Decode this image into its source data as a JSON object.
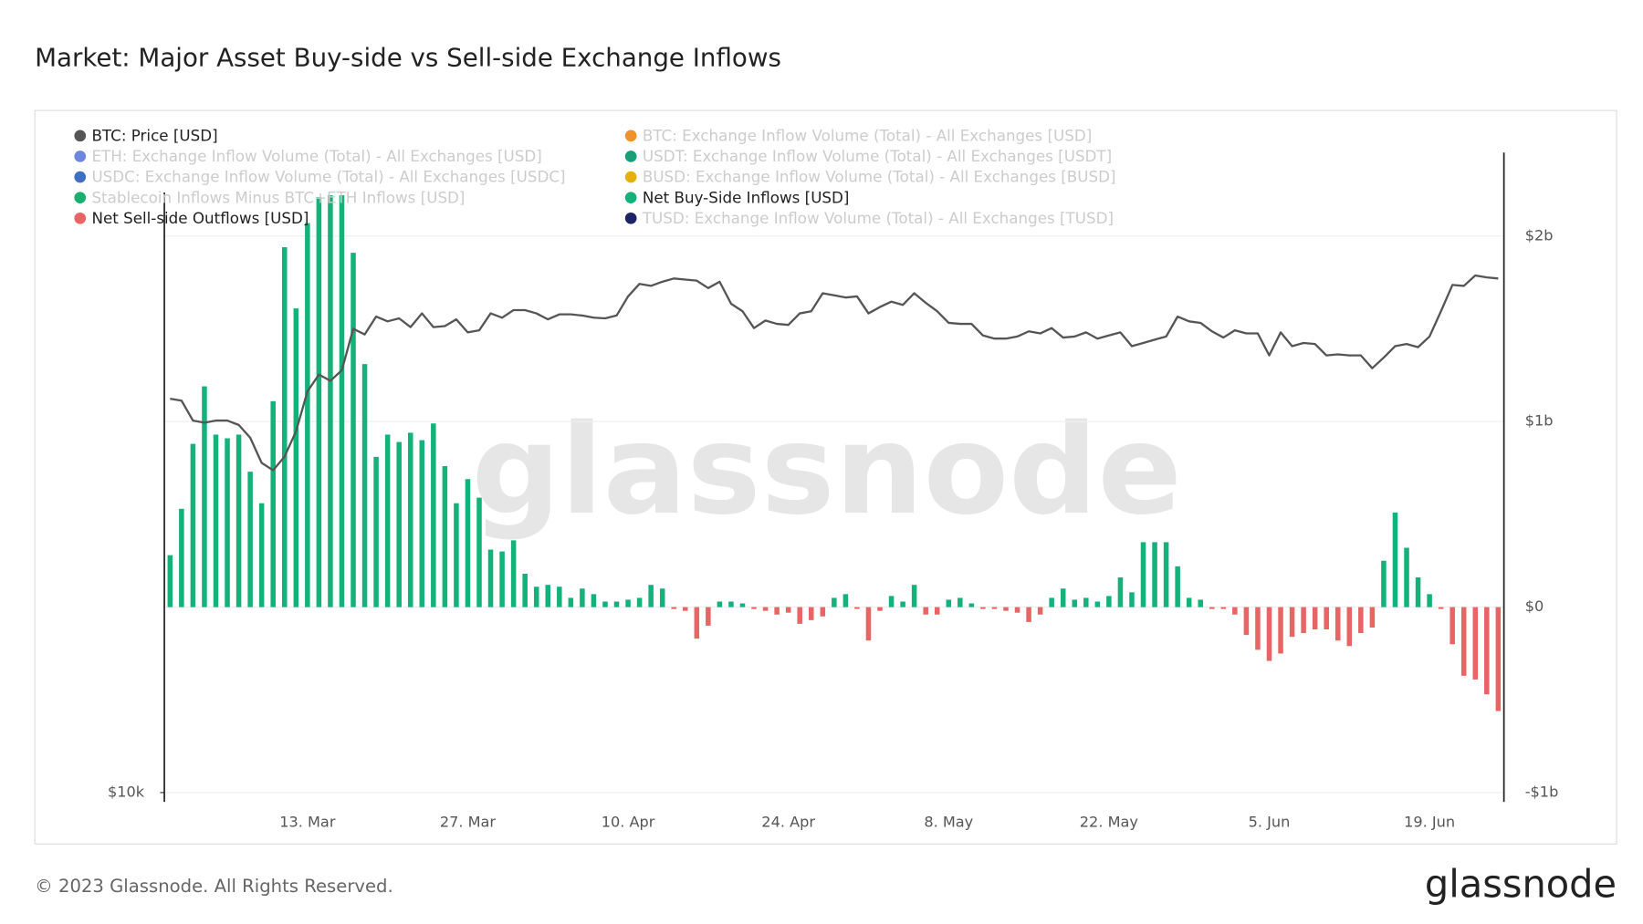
{
  "chart_data": {
    "type": "bar",
    "title": "Market: Major Asset Buy-side vs Sell-side Exchange Inflows",
    "footer": "© 2023 Glassnode. All Rights Reserved.",
    "watermark": "glassnode",
    "logo": "glassnode",
    "categories": [
      null,
      null,
      null,
      null,
      null,
      null,
      null,
      null,
      null,
      null,
      null,
      null,
      "13. Mar",
      null,
      null,
      null,
      null,
      null,
      null,
      null,
      null,
      null,
      null,
      null,
      null,
      null,
      "27. Mar",
      null,
      null,
      null,
      null,
      null,
      null,
      null,
      null,
      null,
      null,
      null,
      null,
      null,
      "10. Apr",
      null,
      null,
      null,
      null,
      null,
      null,
      null,
      null,
      null,
      null,
      null,
      null,
      null,
      "24. Apr",
      null,
      null,
      null,
      null,
      null,
      null,
      null,
      null,
      null,
      null,
      null,
      null,
      null,
      "8. May",
      null,
      null,
      null,
      null,
      null,
      null,
      null,
      null,
      null,
      null,
      null,
      null,
      null,
      "22. May",
      null,
      null,
      null,
      null,
      null,
      null,
      null,
      null,
      null,
      null,
      null,
      null,
      null,
      "5. Jun",
      null,
      null,
      null,
      null,
      null,
      null,
      null,
      null,
      null,
      null,
      null,
      null,
      null,
      "19. Jun",
      null,
      null,
      null,
      null,
      null,
      null
    ],
    "ylim": [
      9800,
      39800
    ],
    "log_y": true,
    "yticks": [
      {
        "value": 10000,
        "label": "$10k"
      }
    ],
    "y2lim": [
      -1.05,
      2.45
    ],
    "y2ticks": [
      {
        "value": -1,
        "label": "-$1b"
      },
      {
        "value": 0,
        "label": "$0"
      },
      {
        "value": 1,
        "label": "$1b"
      },
      {
        "value": 2,
        "label": "$2b"
      }
    ],
    "grid": true,
    "series": [
      {
        "name": "BTC: Price [USD]",
        "color": "#555555",
        "type": "line",
        "visible": true,
        "values": [
          23400,
          23300,
          22320,
          22220,
          22320,
          22320,
          22110,
          21510,
          20370,
          20050,
          20650,
          21810,
          23770,
          24650,
          24320,
          24880,
          27210,
          26880,
          27940,
          27650,
          27830,
          27310,
          28130,
          27310,
          27370,
          27770,
          27000,
          27120,
          28130,
          27870,
          28330,
          28330,
          28130,
          27770,
          28070,
          28070,
          28000,
          27870,
          27830,
          28000,
          29180,
          29980,
          29850,
          30120,
          30330,
          30260,
          30190,
          29710,
          30120,
          28720,
          28260,
          27250,
          27700,
          27500,
          27440,
          28130,
          28260,
          29380,
          29250,
          29110,
          29180,
          28130,
          28520,
          28850,
          28650,
          29380,
          28780,
          28260,
          27560,
          27500,
          27500,
          26820,
          26640,
          26640,
          26760,
          27060,
          26940,
          27250,
          26700,
          26760,
          27000,
          26640,
          26820,
          27000,
          26210,
          26390,
          26580,
          26760,
          27940,
          27650,
          27560,
          27060,
          26700,
          27120,
          26940,
          26940,
          25690,
          27000,
          26210,
          26390,
          26330,
          25690,
          25750,
          25690,
          25690,
          24990,
          25570,
          26210,
          26330,
          26150,
          26760,
          28260,
          29910,
          29850,
          30530,
          30400,
          30330
        ]
      },
      {
        "name": "BTC: Exchange Inflow Volume (Total) - All Exchanges [USD]",
        "color": "#f0922b",
        "visible": false
      },
      {
        "name": "ETH: Exchange Inflow Volume (Total) - All Exchanges [USD]",
        "color": "#6f86e0",
        "visible": false
      },
      {
        "name": "USDT: Exchange Inflow Volume (Total) - All Exchanges [USDT]",
        "color": "#1a9e77",
        "visible": false
      },
      {
        "name": "USDC: Exchange Inflow Volume (Total) - All Exchanges [USDC]",
        "color": "#3d6fc4",
        "visible": false
      },
      {
        "name": "BUSD: Exchange Inflow Volume (Total) - All Exchanges [BUSD]",
        "color": "#e5b00a",
        "visible": false
      },
      {
        "name": "Stablecoin Inflows Minus BTC+ETH Inflows [USD]",
        "color": "#1aae6f",
        "visible": false
      },
      {
        "name": "Net Buy-Side Inflows [USD]",
        "color": "#13b27a",
        "type": "bar",
        "axis": "y2",
        "visible": true,
        "values": [
          0.28,
          0.53,
          0.88,
          1.19,
          0.93,
          0.91,
          0.93,
          0.73,
          0.56,
          1.11,
          1.94,
          1.61,
          2.07,
          2.21,
          2.22,
          2.22,
          1.91,
          1.31,
          0.81,
          0.93,
          0.89,
          0.94,
          0.9,
          0.99,
          0.76,
          0.56,
          0.69,
          0.59,
          0.31,
          0.3,
          0.36,
          0.18,
          0.11,
          0.12,
          0.11,
          0.05,
          0.1,
          0.07,
          0.03,
          0.03,
          0.04,
          0.05,
          0.12,
          0.1,
          null,
          null,
          null,
          null,
          0.03,
          0.03,
          0.02,
          null,
          null,
          null,
          null,
          null,
          null,
          null,
          0.05,
          0.07,
          null,
          null,
          null,
          0.06,
          0.03,
          0.12,
          null,
          null,
          0.04,
          0.05,
          0.02,
          null,
          null,
          null,
          null,
          null,
          null,
          0.05,
          0.1,
          0.04,
          0.05,
          0.03,
          0.06,
          0.16,
          0.08,
          0.35,
          0.35,
          0.35,
          0.22,
          0.05,
          0.04,
          null,
          null,
          null,
          null,
          null,
          null,
          null,
          null,
          null,
          null,
          null,
          null,
          null,
          null,
          null,
          0.25,
          0.51,
          0.32,
          0.16,
          0.07,
          null,
          null,
          null,
          null,
          null,
          null
        ]
      },
      {
        "name": "Net Sell-side Outflows [USD]",
        "color": "#e96464",
        "type": "bar",
        "axis": "y2",
        "visible": true,
        "values": [
          null,
          null,
          null,
          null,
          null,
          null,
          null,
          null,
          null,
          null,
          null,
          null,
          null,
          null,
          null,
          null,
          null,
          null,
          null,
          null,
          null,
          null,
          null,
          null,
          null,
          null,
          null,
          null,
          null,
          null,
          null,
          null,
          null,
          null,
          null,
          null,
          null,
          null,
          null,
          null,
          null,
          null,
          null,
          null,
          -0.01,
          -0.02,
          -0.17,
          -0.1,
          null,
          null,
          null,
          -0.01,
          -0.02,
          -0.04,
          -0.03,
          -0.09,
          -0.07,
          -0.05,
          null,
          null,
          -0.01,
          -0.18,
          -0.02,
          null,
          null,
          null,
          -0.04,
          -0.04,
          null,
          null,
          null,
          -0.01,
          -0.01,
          -0.02,
          -0.03,
          -0.08,
          -0.04,
          null,
          null,
          null,
          null,
          null,
          null,
          null,
          null,
          null,
          null,
          null,
          null,
          null,
          null,
          -0.01,
          -0.01,
          -0.04,
          -0.15,
          -0.23,
          -0.29,
          -0.25,
          -0.16,
          -0.14,
          -0.12,
          -0.12,
          -0.18,
          -0.21,
          -0.14,
          -0.11,
          null,
          null,
          null,
          null,
          null,
          -0.01,
          -0.2,
          -0.37,
          -0.39,
          -0.47,
          -0.56
        ]
      },
      {
        "name": "TUSD: Exchange Inflow Volume (Total) - All Exchanges [TUSD]",
        "color": "#1d2466",
        "visible": false
      }
    ]
  }
}
